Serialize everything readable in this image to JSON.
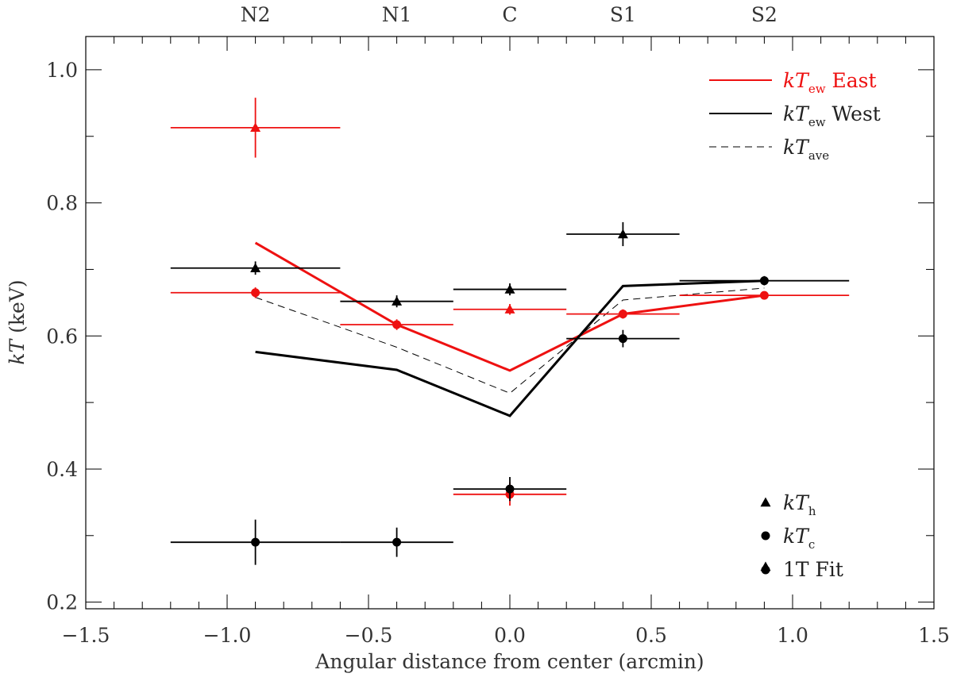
{
  "chart_data": {
    "type": "scatter",
    "xlabel": "Angular distance from center (arcmin)",
    "ylabel_main": "kT",
    "ylabel_unit": " (keV)",
    "xlim": [
      -1.5,
      1.5
    ],
    "ylim": [
      0.19,
      1.05
    ],
    "x_ticks": [
      -1.5,
      -1.0,
      -0.5,
      0.0,
      0.5,
      1.0,
      1.5
    ],
    "x_tick_labels": [
      "−1.5",
      "−1.0",
      "−0.5",
      "0.0",
      "0.5",
      "1.0",
      "1.5"
    ],
    "y_ticks": [
      0.2,
      0.4,
      0.6,
      0.8,
      1.0
    ],
    "y_tick_labels": [
      "0.2",
      "0.4",
      "0.6",
      "0.8",
      "1.0"
    ],
    "regions": [
      {
        "label": "N2",
        "x": -0.9
      },
      {
        "label": "N1",
        "x": -0.4
      },
      {
        "label": "C",
        "x": 0.0
      },
      {
        "label": "S1",
        "x": 0.4
      },
      {
        "label": "S2",
        "x": 0.9
      }
    ],
    "colors": {
      "east": "#ee1111",
      "west": "#000000"
    },
    "points": [
      {
        "series": "East",
        "marker": "triangle",
        "x": -0.9,
        "y": 0.913,
        "xlo": -1.2,
        "xhi": -0.6,
        "ylo": 0.868,
        "yhi": 0.958
      },
      {
        "series": "East",
        "marker": "circle",
        "x": -0.9,
        "y": 0.665,
        "xlo": -1.2,
        "xhi": -0.6,
        "ylo": 0.657,
        "yhi": 0.673
      },
      {
        "series": "East",
        "marker": "circle",
        "x": -0.4,
        "y": 0.617,
        "xlo": -0.6,
        "xhi": -0.2,
        "ylo": 0.609,
        "yhi": 0.625
      },
      {
        "series": "East",
        "marker": "triangle",
        "x": 0.0,
        "y": 0.64,
        "xlo": -0.2,
        "xhi": 0.2,
        "ylo": 0.632,
        "yhi": 0.648
      },
      {
        "series": "East",
        "marker": "circle",
        "x": 0.0,
        "y": 0.362,
        "xlo": -0.2,
        "xhi": 0.2,
        "ylo": 0.345,
        "yhi": 0.38
      },
      {
        "series": "East",
        "marker": "circle",
        "x": 0.4,
        "y": 0.633,
        "xlo": 0.2,
        "xhi": 0.6,
        "ylo": 0.626,
        "yhi": 0.64
      },
      {
        "series": "East",
        "marker": "circle",
        "x": 0.9,
        "y": 0.661,
        "xlo": 0.6,
        "xhi": 1.2,
        "ylo": 0.655,
        "yhi": 0.667
      },
      {
        "series": "West",
        "marker": "triangle",
        "x": -0.9,
        "y": 0.702,
        "xlo": -1.2,
        "xhi": -0.6,
        "ylo": 0.692,
        "yhi": 0.712
      },
      {
        "series": "West",
        "marker": "circle",
        "x": -0.9,
        "y": 0.29,
        "xlo": -1.2,
        "xhi": -0.6,
        "ylo": 0.256,
        "yhi": 0.324
      },
      {
        "series": "West",
        "marker": "triangle",
        "x": -0.4,
        "y": 0.652,
        "xlo": -0.6,
        "xhi": -0.2,
        "ylo": 0.643,
        "yhi": 0.661
      },
      {
        "series": "West",
        "marker": "circle",
        "x": -0.4,
        "y": 0.29,
        "xlo": -0.6,
        "xhi": -0.2,
        "ylo": 0.268,
        "yhi": 0.312
      },
      {
        "series": "West",
        "marker": "triangle",
        "x": 0.0,
        "y": 0.67,
        "xlo": -0.2,
        "xhi": 0.2,
        "ylo": 0.661,
        "yhi": 0.679
      },
      {
        "series": "West",
        "marker": "circle",
        "x": 0.0,
        "y": 0.37,
        "xlo": -0.2,
        "xhi": 0.2,
        "ylo": 0.352,
        "yhi": 0.388
      },
      {
        "series": "West",
        "marker": "triangle",
        "x": 0.4,
        "y": 0.753,
        "xlo": 0.2,
        "xhi": 0.6,
        "ylo": 0.735,
        "yhi": 0.771
      },
      {
        "series": "West",
        "marker": "circle",
        "x": 0.4,
        "y": 0.596,
        "xlo": 0.2,
        "xhi": 0.6,
        "ylo": 0.583,
        "yhi": 0.609
      },
      {
        "series": "West",
        "marker": "circle",
        "x": 0.9,
        "y": 0.683,
        "xlo": 0.6,
        "xhi": 1.2,
        "ylo": 0.676,
        "yhi": 0.69
      }
    ],
    "lines": [
      {
        "name": "kT_ew East",
        "style": "solid-red",
        "x": [
          -0.9,
          -0.4,
          0.0,
          0.4,
          0.9
        ],
        "y": [
          0.74,
          0.617,
          0.548,
          0.633,
          0.661
        ]
      },
      {
        "name": "kT_ew West",
        "style": "solid-black",
        "x": [
          -0.9,
          -0.4,
          0.0,
          0.4,
          0.9
        ],
        "y": [
          0.576,
          0.549,
          0.48,
          0.675,
          0.683
        ]
      },
      {
        "name": "kT_ave",
        "style": "dashed",
        "x": [
          -0.9,
          -0.4,
          0.0,
          0.4,
          0.9
        ],
        "y": [
          0.658,
          0.583,
          0.514,
          0.654,
          0.672
        ]
      }
    ],
    "legend_lines": [
      {
        "style": "solid-red",
        "main": "kT",
        "sub": "ew",
        "suffix": " East"
      },
      {
        "style": "solid-black",
        "main": "kT",
        "sub": "ew",
        "suffix": " West"
      },
      {
        "style": "dashed",
        "main": "kT",
        "sub": "ave",
        "suffix": ""
      }
    ],
    "legend_markers": [
      {
        "marker": "triangle",
        "main": "kT",
        "sub": "h",
        "text": ""
      },
      {
        "marker": "circle",
        "main": "kT",
        "sub": "c",
        "text": ""
      },
      {
        "marker": "both",
        "main": "",
        "sub": "",
        "text": "1T Fit"
      }
    ]
  }
}
